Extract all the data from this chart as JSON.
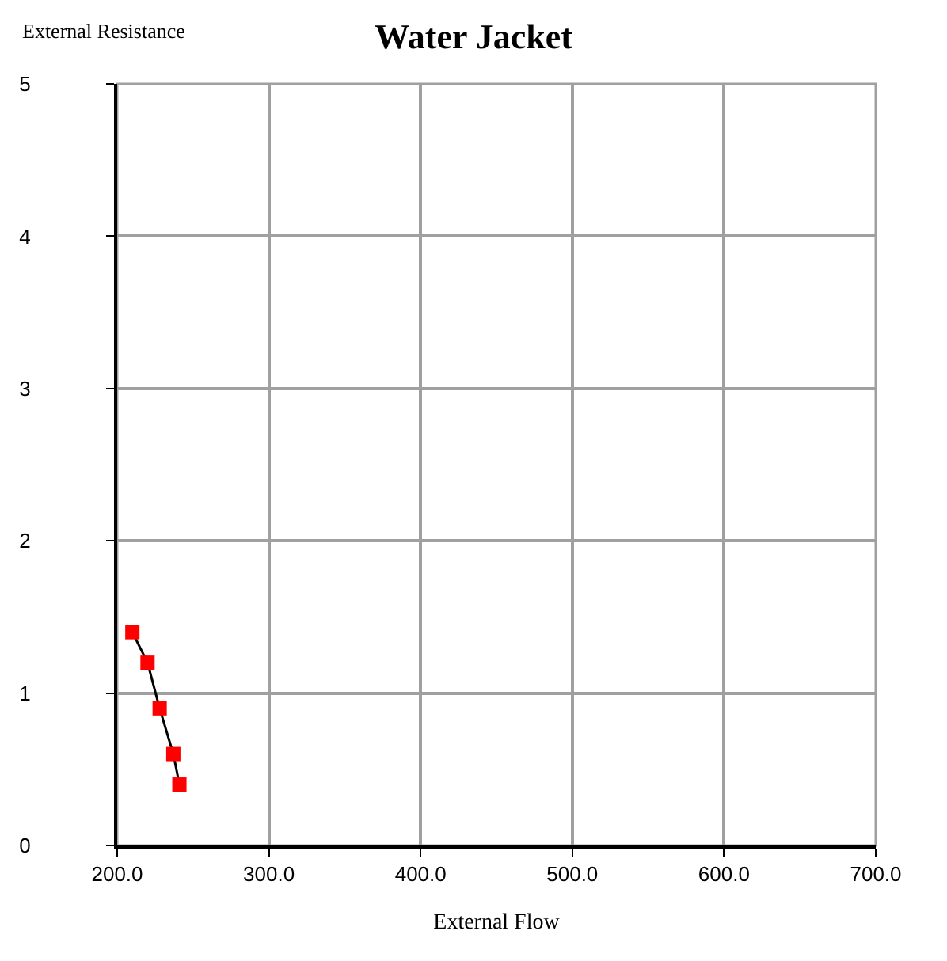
{
  "chart_data": {
    "type": "line",
    "title": "Water Jacket",
    "xlabel": "External Flow",
    "ylabel": "External Resistance",
    "x": [
      210,
      220,
      228,
      237,
      241
    ],
    "series": [
      {
        "color": "#ff0000",
        "values": [
          1.4,
          1.2,
          0.9,
          0.6,
          0.4
        ]
      }
    ],
    "xlim": [
      200,
      700
    ],
    "xticks": [
      {
        "value": 200,
        "label": "200.0"
      },
      {
        "value": 300,
        "label": "300.0"
      },
      {
        "value": 400,
        "label": "400.0"
      },
      {
        "value": 500,
        "label": "500.0"
      },
      {
        "value": 600,
        "label": "600.0"
      },
      {
        "value": 700,
        "label": "700.0"
      }
    ],
    "ylim": [
      0,
      5
    ],
    "yticks": [
      0,
      1,
      2,
      3,
      4,
      5
    ],
    "grid": true,
    "marker": "square",
    "line_style": "solid"
  }
}
